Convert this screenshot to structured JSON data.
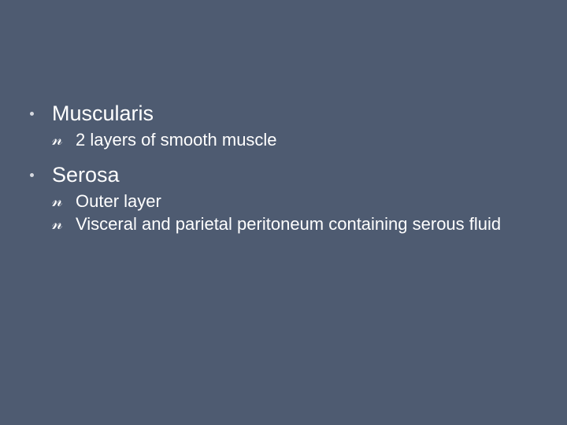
{
  "colors": {
    "background": "#4e5b71",
    "text": "#ffffff",
    "bullet_level1": "#d6d9df",
    "bullet_level2": "#ffffff"
  },
  "slide": {
    "items": [
      {
        "label": "Muscularis",
        "sub": [
          {
            "label": "2 layers of smooth muscle"
          }
        ]
      },
      {
        "label": "Serosa",
        "sub": [
          {
            "label": "Outer layer"
          },
          {
            "label": "Visceral and parietal peritoneum containing serous fluid"
          }
        ]
      }
    ]
  }
}
